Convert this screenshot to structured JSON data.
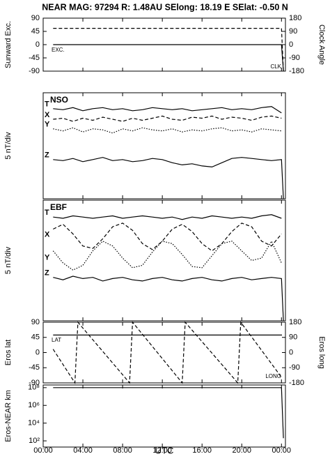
{
  "title": "NEAR MAG: 97294  R: 1.48AU  SElong:   18.19 E  SElat:  -0.50 N",
  "xlabel": "UTC",
  "xlim": [
    0,
    24.4
  ],
  "xticks": [
    {
      "value": 0,
      "label": "00:00"
    },
    {
      "value": 4,
      "label": "04:00"
    },
    {
      "value": 8,
      "label": "08:00"
    },
    {
      "value": 12,
      "label": "12:00"
    },
    {
      "value": 16,
      "label": "16:00"
    },
    {
      "value": 20,
      "label": "20:00"
    },
    {
      "value": 24,
      "label": "00:00"
    }
  ],
  "chart_data": [
    {
      "type": "line",
      "ylabel": "Sunward Exc.",
      "y2label": "Clock Angle",
      "ylim": [
        -90,
        90
      ],
      "yticks": [
        -90,
        -45,
        0,
        45,
        90
      ],
      "y2lim": [
        -180,
        180
      ],
      "y2ticks": [
        -180,
        -90,
        0,
        90,
        180
      ],
      "x": [
        1,
        24,
        24.2
      ],
      "series": [
        {
          "name": "EXC.",
          "dash": "solid",
          "color": "#000000",
          "values": [
            0,
            0,
            -90
          ]
        },
        {
          "name": "CLK",
          "dash": "dashed",
          "color": "#000000",
          "axis": "y2",
          "values": [
            111,
            111,
            -180
          ]
        }
      ]
    },
    {
      "type": "line",
      "annotation": "NSO",
      "ylabel": "5 nT/div",
      "ylim": [
        0,
        100
      ],
      "x": [
        1,
        2,
        3,
        4,
        5,
        6,
        7,
        8,
        9,
        10,
        11,
        12,
        13,
        14,
        15,
        16,
        17,
        18,
        19,
        20,
        21,
        22,
        23,
        24,
        24.2
      ],
      "series": [
        {
          "name": "T",
          "dash": "solid",
          "color": "#000000",
          "values": [
            85,
            84,
            86,
            83,
            85,
            86,
            84,
            85,
            83,
            84,
            86,
            85,
            84,
            85,
            83,
            84,
            85,
            86,
            84,
            85,
            84,
            86,
            87,
            81,
            null
          ]
        },
        {
          "name": "X",
          "dash": "dashed",
          "color": "#000000",
          "values": [
            75,
            76,
            73,
            76,
            74,
            77,
            75,
            73,
            76,
            74,
            76,
            78,
            75,
            74,
            77,
            76,
            78,
            75,
            77,
            76,
            74,
            77,
            78,
            76,
            null
          ]
        },
        {
          "name": "Y",
          "dash": "dotted",
          "color": "#000000",
          "values": [
            66,
            64,
            67,
            63,
            66,
            65,
            62,
            66,
            64,
            67,
            65,
            64,
            66,
            63,
            65,
            64,
            66,
            67,
            64,
            65,
            63,
            66,
            65,
            64,
            null
          ]
        },
        {
          "name": "Z",
          "dash": "solid",
          "color": "#000000",
          "values": [
            37,
            36,
            38,
            35,
            37,
            39,
            36,
            37,
            35,
            36,
            38,
            37,
            34,
            32,
            33,
            31,
            30,
            34,
            38,
            39,
            38,
            37,
            36,
            37,
            0
          ]
        }
      ]
    },
    {
      "type": "line",
      "annotation": "EBF",
      "ylabel": "5 nT/div",
      "ylim": [
        0,
        100
      ],
      "x": [
        1,
        2,
        3,
        4,
        5,
        6,
        7,
        8,
        9,
        10,
        11,
        12,
        13,
        14,
        15,
        16,
        17,
        18,
        19,
        20,
        21,
        22,
        23,
        24,
        24.2
      ],
      "series": [
        {
          "name": "T",
          "dash": "solid",
          "color": "#000000",
          "values": [
            86,
            85,
            87,
            86,
            85,
            86,
            87,
            85,
            86,
            87,
            86,
            85,
            86,
            84,
            86,
            85,
            87,
            86,
            85,
            86,
            85,
            87,
            88,
            85,
            null
          ]
        },
        {
          "name": "X",
          "dash": "dashed",
          "color": "#000000",
          "values": [
            76,
            80,
            72,
            62,
            60,
            68,
            78,
            81,
            75,
            64,
            59,
            66,
            76,
            80,
            74,
            64,
            58,
            64,
            74,
            81,
            78,
            66,
            62,
            72,
            null
          ]
        },
        {
          "name": "Y",
          "dash": "dotted",
          "color": "#000000",
          "values": [
            58,
            48,
            42,
            46,
            58,
            66,
            62,
            52,
            44,
            46,
            57,
            66,
            64,
            55,
            45,
            44,
            54,
            64,
            66,
            58,
            50,
            52,
            66,
            48,
            null
          ]
        },
        {
          "name": "Z",
          "dash": "solid",
          "color": "#000000",
          "values": [
            36,
            34,
            37,
            35,
            36,
            33,
            35,
            36,
            34,
            33,
            35,
            36,
            34,
            33,
            35,
            36,
            34,
            33,
            35,
            36,
            34,
            35,
            36,
            35,
            0
          ]
        }
      ]
    },
    {
      "type": "line",
      "ylabel": "Eros lat",
      "y2label": "Eros long",
      "ylim": [
        -90,
        90
      ],
      "yticks": [
        -90,
        -45,
        0,
        45,
        90
      ],
      "y2lim": [
        -180,
        180
      ],
      "y2ticks": [
        -180,
        -90,
        0,
        90,
        180
      ],
      "x": [
        1,
        3.2,
        3.5,
        8.7,
        9.0,
        14.0,
        14.3,
        19.6,
        19.9,
        24.05
      ],
      "series": [
        {
          "name": "LAT",
          "dash": "solid",
          "color": "#000000",
          "values": [
            52,
            52,
            52,
            52,
            52,
            52,
            52,
            52,
            52,
            52
          ]
        },
        {
          "name": "LONG",
          "dash": "dashed",
          "color": "#000000",
          "axis": "y2",
          "values": [
            20,
            -180,
            180,
            -180,
            180,
            -180,
            180,
            -180,
            180,
            -150
          ]
        }
      ]
    },
    {
      "type": "line",
      "ylabel": "Eros-NEAR km",
      "log": true,
      "ylim": [
        20,
        200000000
      ],
      "yticks": [
        {
          "value": 100,
          "label": "10²"
        },
        {
          "value": 10000,
          "label": "10⁴"
        },
        {
          "value": 1000000,
          "label": "10⁶"
        },
        {
          "value": 100000000,
          "label": "10⁸"
        }
      ],
      "x": [
        1,
        24,
        24.2
      ],
      "series": [
        {
          "dash": "solid",
          "color": "#000000",
          "values": [
            100000000,
            100000000,
            200
          ]
        }
      ]
    }
  ]
}
